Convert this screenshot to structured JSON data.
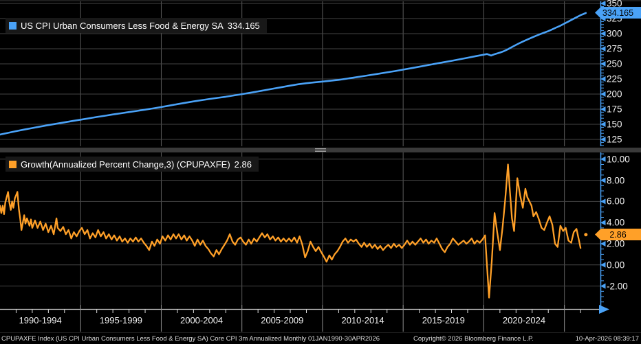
{
  "colors": {
    "background": "#000000",
    "blue": "#4aa2f7",
    "orange": "#ffa028",
    "grid_h": "#454545",
    "grid_v": "#5b5b5b",
    "axis_blue": "#4aa2f7",
    "xaxis_line": "#c9c9c9",
    "year_tick": "#e0e0e0",
    "divider_column": "#8f8f8f",
    "legend_bg": "#181818",
    "text": "#f2f2f2"
  },
  "top_panel": {
    "legend_label": "US CPI Urban Consumers Less Food & Energy SA",
    "legend_value": "334.165",
    "badge_value": "334.165",
    "tick_labels": [
      "350",
      "325",
      "300",
      "275",
      "250",
      "225",
      "200",
      "175",
      "150",
      "125"
    ]
  },
  "bottom_panel": {
    "legend_label": "Growth(Annualized Percent Change,3) (CPUPAXFE)",
    "legend_value": "2.86",
    "badge_value": "2.86",
    "tick_labels": [
      "10.00",
      "8.00",
      "6.00",
      "4.00",
      "2.00",
      "0.00",
      "-2.00"
    ]
  },
  "x_axis": {
    "labels": [
      "1990-1994",
      "1995-1999",
      "2000-2004",
      "2005-2009",
      "2010-2014",
      "2015-2019",
      "2020-2024"
    ],
    "gridline_years": [
      1995,
      2000,
      2005,
      2010,
      2015,
      2020,
      2025
    ],
    "year_tick_start": 1991,
    "year_tick_end": 2026
  },
  "footer": {
    "description": "CPUPAXFE Index (US CPI Urban Consumers Less Food & Energy SA) Core CPI 3m Annualized Monthly 01JAN1990-30APR2026",
    "copyright": "Copyright© 2026 Bloomberg Finance L.P.",
    "timestamp": "10-Apr-2026 08:39:17"
  },
  "chart_data": [
    {
      "type": "line",
      "panel": "top",
      "name": "US CPI Urban Consumers Less Food & Energy SA",
      "color": "#4aa2f7",
      "last_value": 334.165,
      "x_range": [
        1990.0,
        2026.33
      ],
      "ylim": [
        114,
        356
      ],
      "yticks": [
        125,
        150,
        175,
        200,
        225,
        250,
        275,
        300,
        325,
        350
      ],
      "minor_step": 5,
      "grid": true,
      "legend_position": "top-left",
      "points": [
        [
          1990,
          133
        ],
        [
          1990.5,
          135.8
        ],
        [
          1991,
          138.6
        ],
        [
          1991.5,
          141.2
        ],
        [
          1992,
          143.8
        ],
        [
          1992.5,
          146.2
        ],
        [
          1993,
          148.6
        ],
        [
          1993.5,
          150.9
        ],
        [
          1994,
          153.2
        ],
        [
          1994.5,
          155.4
        ],
        [
          1995,
          157.6
        ],
        [
          1995.5,
          159.8
        ],
        [
          1996,
          162
        ],
        [
          1996.5,
          164.1
        ],
        [
          1997,
          166.2
        ],
        [
          1997.5,
          168.2
        ],
        [
          1998,
          170.2
        ],
        [
          1998.5,
          172.2
        ],
        [
          1999,
          174.2
        ],
        [
          1999.5,
          176.3
        ],
        [
          2000,
          178.5
        ],
        [
          2000.5,
          180.9
        ],
        [
          2001,
          183.3
        ],
        [
          2001.5,
          185.6
        ],
        [
          2002,
          187.8
        ],
        [
          2002.5,
          189.9
        ],
        [
          2003,
          191.9
        ],
        [
          2003.5,
          193.7
        ],
        [
          2004,
          195.6
        ],
        [
          2004.5,
          197.7
        ],
        [
          2005,
          199.9
        ],
        [
          2005.5,
          202.1
        ],
        [
          2006,
          204.4
        ],
        [
          2006.5,
          206.8
        ],
        [
          2007,
          209.2
        ],
        [
          2007.5,
          211.6
        ],
        [
          2008,
          214
        ],
        [
          2008.5,
          216.2
        ],
        [
          2009,
          218
        ],
        [
          2009.5,
          219.4
        ],
        [
          2010,
          220.7
        ],
        [
          2010.5,
          222
        ],
        [
          2011,
          223.5
        ],
        [
          2011.5,
          225.4
        ],
        [
          2012,
          227.5
        ],
        [
          2012.5,
          229.6
        ],
        [
          2013,
          231.7
        ],
        [
          2013.5,
          233.8
        ],
        [
          2014,
          235.9
        ],
        [
          2014.5,
          238.1
        ],
        [
          2015,
          240.4
        ],
        [
          2015.5,
          242.8
        ],
        [
          2016,
          245.2
        ],
        [
          2016.5,
          247.7
        ],
        [
          2017,
          250.2
        ],
        [
          2017.5,
          252.6
        ],
        [
          2018,
          255
        ],
        [
          2018.5,
          257.5
        ],
        [
          2019,
          260.1
        ],
        [
          2019.5,
          262.7
        ],
        [
          2020,
          265.2
        ],
        [
          2020.2,
          266.2
        ],
        [
          2020.45,
          263.8
        ],
        [
          2020.7,
          266.2
        ],
        [
          2021,
          268.6
        ],
        [
          2021.25,
          271
        ],
        [
          2021.5,
          274.2
        ],
        [
          2021.75,
          277.8
        ],
        [
          2022,
          281.4
        ],
        [
          2022.25,
          284.8
        ],
        [
          2022.5,
          287.8
        ],
        [
          2022.75,
          290.8
        ],
        [
          2023,
          293.8
        ],
        [
          2023.25,
          296.5
        ],
        [
          2023.5,
          299.2
        ],
        [
          2023.75,
          301.7
        ],
        [
          2024,
          304.2
        ],
        [
          2024.25,
          307.2
        ],
        [
          2024.5,
          310.2
        ],
        [
          2024.75,
          313.2
        ],
        [
          2025,
          316.6
        ],
        [
          2025.25,
          320.1
        ],
        [
          2025.5,
          323.6
        ],
        [
          2025.75,
          327.1
        ],
        [
          2026,
          330.6
        ],
        [
          2026.17,
          332.4
        ],
        [
          2026.33,
          334.165
        ]
      ]
    },
    {
      "type": "line",
      "panel": "bottom",
      "name": "Growth(Annualized Percent Change,3) (CPUPAXFE)",
      "color": "#ffa028",
      "last_value": 2.86,
      "x_range": [
        1990.0,
        2026.33
      ],
      "ylim": [
        -4.2,
        10.6
      ],
      "yticks": [
        -2,
        0,
        2,
        4,
        6,
        8,
        10
      ],
      "minor_step": 0.5,
      "grid": true,
      "legend_position": "top-left",
      "last_point": [
        2026.33,
        2.86
      ],
      "points": [
        [
          1990.0,
          5.6
        ],
        [
          1990.08,
          4.9
        ],
        [
          1990.17,
          5.6
        ],
        [
          1990.25,
          4.8
        ],
        [
          1990.33,
          5.9
        ],
        [
          1990.5,
          6.9
        ],
        [
          1990.58,
          5.9
        ],
        [
          1990.67,
          5.2
        ],
        [
          1990.75,
          6.0
        ],
        [
          1990.83,
          5.4
        ],
        [
          1990.92,
          6.3
        ],
        [
          1991.08,
          6.9
        ],
        [
          1991.17,
          5.3
        ],
        [
          1991.25,
          4.4
        ],
        [
          1991.33,
          3.3
        ],
        [
          1991.5,
          4.7
        ],
        [
          1991.58,
          3.9
        ],
        [
          1991.67,
          4.4
        ],
        [
          1991.83,
          3.7
        ],
        [
          1991.92,
          4.3
        ],
        [
          1992.0,
          3.5
        ],
        [
          1992.17,
          4.2
        ],
        [
          1992.33,
          3.5
        ],
        [
          1992.5,
          4.1
        ],
        [
          1992.67,
          3.3
        ],
        [
          1992.83,
          3.9
        ],
        [
          1993.0,
          3.1
        ],
        [
          1993.17,
          3.7
        ],
        [
          1993.33,
          2.9
        ],
        [
          1993.5,
          4.4
        ],
        [
          1993.58,
          3.5
        ],
        [
          1993.75,
          3.2
        ],
        [
          1993.92,
          3.6
        ],
        [
          1994.08,
          2.9
        ],
        [
          1994.25,
          3.3
        ],
        [
          1994.42,
          2.5
        ],
        [
          1994.58,
          3.1
        ],
        [
          1994.75,
          2.7
        ],
        [
          1994.92,
          3.2
        ],
        [
          1995.08,
          3.5
        ],
        [
          1995.25,
          2.9
        ],
        [
          1995.42,
          3.3
        ],
        [
          1995.58,
          2.5
        ],
        [
          1995.75,
          3.0
        ],
        [
          1995.92,
          2.6
        ],
        [
          1996.08,
          3.3
        ],
        [
          1996.25,
          2.7
        ],
        [
          1996.42,
          3.1
        ],
        [
          1996.58,
          2.5
        ],
        [
          1996.75,
          2.9
        ],
        [
          1996.92,
          2.4
        ],
        [
          1997.08,
          2.8
        ],
        [
          1997.25,
          2.3
        ],
        [
          1997.42,
          2.7
        ],
        [
          1997.58,
          2.2
        ],
        [
          1997.75,
          2.5
        ],
        [
          1997.92,
          2.1
        ],
        [
          1998.08,
          2.5
        ],
        [
          1998.25,
          2.2
        ],
        [
          1998.42,
          2.6
        ],
        [
          1998.58,
          2.2
        ],
        [
          1998.75,
          2.5
        ],
        [
          1998.92,
          2.1
        ],
        [
          1999.08,
          1.8
        ],
        [
          1999.25,
          1.4
        ],
        [
          1999.42,
          2.2
        ],
        [
          1999.58,
          1.8
        ],
        [
          1999.75,
          2.4
        ],
        [
          1999.92,
          2.0
        ],
        [
          2000.08,
          2.7
        ],
        [
          2000.25,
          2.3
        ],
        [
          2000.42,
          2.8
        ],
        [
          2000.58,
          2.4
        ],
        [
          2000.75,
          2.9
        ],
        [
          2000.92,
          2.5
        ],
        [
          2001.08,
          2.9
        ],
        [
          2001.25,
          2.4
        ],
        [
          2001.42,
          2.8
        ],
        [
          2001.58,
          2.3
        ],
        [
          2001.75,
          2.7
        ],
        [
          2001.92,
          2.3
        ],
        [
          2002.08,
          1.8
        ],
        [
          2002.25,
          2.4
        ],
        [
          2002.42,
          1.9
        ],
        [
          2002.58,
          2.3
        ],
        [
          2002.75,
          1.8
        ],
        [
          2002.92,
          1.5
        ],
        [
          2003.08,
          1.1
        ],
        [
          2003.25,
          0.8
        ],
        [
          2003.42,
          1.4
        ],
        [
          2003.58,
          1.0
        ],
        [
          2003.75,
          1.5
        ],
        [
          2003.92,
          1.9
        ],
        [
          2004.08,
          2.3
        ],
        [
          2004.25,
          2.9
        ],
        [
          2004.42,
          2.2
        ],
        [
          2004.58,
          1.9
        ],
        [
          2004.75,
          2.4
        ],
        [
          2004.92,
          2.6
        ],
        [
          2005.08,
          2.2
        ],
        [
          2005.25,
          1.9
        ],
        [
          2005.42,
          2.4
        ],
        [
          2005.58,
          2.0
        ],
        [
          2005.75,
          2.5
        ],
        [
          2005.92,
          2.2
        ],
        [
          2006.08,
          2.6
        ],
        [
          2006.25,
          3.0
        ],
        [
          2006.42,
          2.6
        ],
        [
          2006.58,
          2.9
        ],
        [
          2006.75,
          2.4
        ],
        [
          2006.92,
          2.7
        ],
        [
          2007.08,
          2.3
        ],
        [
          2007.25,
          2.6
        ],
        [
          2007.42,
          2.2
        ],
        [
          2007.58,
          2.5
        ],
        [
          2007.75,
          2.2
        ],
        [
          2007.92,
          2.5
        ],
        [
          2008.08,
          2.2
        ],
        [
          2008.25,
          2.6
        ],
        [
          2008.42,
          2.1
        ],
        [
          2008.58,
          2.7
        ],
        [
          2008.75,
          1.9
        ],
        [
          2008.92,
          0.7
        ],
        [
          2009.08,
          1.3
        ],
        [
          2009.25,
          2.2
        ],
        [
          2009.42,
          1.7
        ],
        [
          2009.58,
          1.3
        ],
        [
          2009.75,
          1.7
        ],
        [
          2009.92,
          1.2
        ],
        [
          2010.08,
          0.8
        ],
        [
          2010.25,
          0.3
        ],
        [
          2010.42,
          0.9
        ],
        [
          2010.58,
          0.5
        ],
        [
          2010.75,
          1.0
        ],
        [
          2010.92,
          1.3
        ],
        [
          2011.08,
          1.7
        ],
        [
          2011.25,
          2.2
        ],
        [
          2011.42,
          2.5
        ],
        [
          2011.58,
          2.1
        ],
        [
          2011.75,
          2.4
        ],
        [
          2011.92,
          2.2
        ],
        [
          2012.08,
          2.4
        ],
        [
          2012.25,
          2.0
        ],
        [
          2012.42,
          1.7
        ],
        [
          2012.58,
          2.1
        ],
        [
          2012.75,
          1.7
        ],
        [
          2012.92,
          2.0
        ],
        [
          2013.08,
          1.6
        ],
        [
          2013.25,
          1.9
        ],
        [
          2013.42,
          1.5
        ],
        [
          2013.58,
          1.8
        ],
        [
          2013.75,
          1.4
        ],
        [
          2013.92,
          1.7
        ],
        [
          2014.08,
          1.9
        ],
        [
          2014.25,
          1.6
        ],
        [
          2014.42,
          2.0
        ],
        [
          2014.58,
          1.7
        ],
        [
          2014.75,
          1.9
        ],
        [
          2014.92,
          1.6
        ],
        [
          2015.08,
          1.9
        ],
        [
          2015.25,
          2.3
        ],
        [
          2015.42,
          1.9
        ],
        [
          2015.58,
          2.2
        ],
        [
          2015.75,
          1.9
        ],
        [
          2015.92,
          2.2
        ],
        [
          2016.08,
          2.5
        ],
        [
          2016.25,
          2.1
        ],
        [
          2016.42,
          2.4
        ],
        [
          2016.58,
          2.0
        ],
        [
          2016.75,
          2.3
        ],
        [
          2016.92,
          2.1
        ],
        [
          2017.08,
          2.5
        ],
        [
          2017.25,
          2.0
        ],
        [
          2017.42,
          1.5
        ],
        [
          2017.58,
          1.2
        ],
        [
          2017.75,
          1.7
        ],
        [
          2017.92,
          2.0
        ],
        [
          2018.08,
          2.5
        ],
        [
          2018.25,
          2.2
        ],
        [
          2018.42,
          1.9
        ],
        [
          2018.58,
          2.1
        ],
        [
          2018.75,
          2.3
        ],
        [
          2018.92,
          2.0
        ],
        [
          2019.08,
          2.2
        ],
        [
          2019.25,
          2.5
        ],
        [
          2019.42,
          2.0
        ],
        [
          2019.58,
          2.3
        ],
        [
          2019.75,
          2.1
        ],
        [
          2019.92,
          2.4
        ],
        [
          2020.08,
          2.8
        ],
        [
          2020.17,
          0.6
        ],
        [
          2020.33,
          -3.1
        ],
        [
          2020.5,
          0.4
        ],
        [
          2020.67,
          4.9
        ],
        [
          2020.83,
          3.1
        ],
        [
          2021.0,
          1.4
        ],
        [
          2021.17,
          3.6
        ],
        [
          2021.33,
          6.2
        ],
        [
          2021.5,
          9.5
        ],
        [
          2021.63,
          6.8
        ],
        [
          2021.75,
          4.4
        ],
        [
          2021.88,
          3.2
        ],
        [
          2022.0,
          6.1
        ],
        [
          2022.08,
          8.2
        ],
        [
          2022.25,
          6.6
        ],
        [
          2022.42,
          5.4
        ],
        [
          2022.58,
          7.2
        ],
        [
          2022.7,
          6.4
        ],
        [
          2022.83,
          6.0
        ],
        [
          2022.96,
          5.6
        ],
        [
          2023.08,
          4.6
        ],
        [
          2023.25,
          5.0
        ],
        [
          2023.42,
          4.3
        ],
        [
          2023.58,
          3.5
        ],
        [
          2023.75,
          3.3
        ],
        [
          2023.92,
          4.0
        ],
        [
          2024.08,
          4.6
        ],
        [
          2024.25,
          3.8
        ],
        [
          2024.42,
          2.0
        ],
        [
          2024.58,
          1.7
        ],
        [
          2024.75,
          3.7
        ],
        [
          2024.92,
          3.2
        ],
        [
          2025.08,
          3.5
        ],
        [
          2025.25,
          2.3
        ],
        [
          2025.42,
          2.1
        ],
        [
          2025.58,
          3.1
        ],
        [
          2025.75,
          3.4
        ],
        [
          2025.92,
          2.2
        ],
        [
          2026.0,
          1.6
        ]
      ]
    }
  ]
}
